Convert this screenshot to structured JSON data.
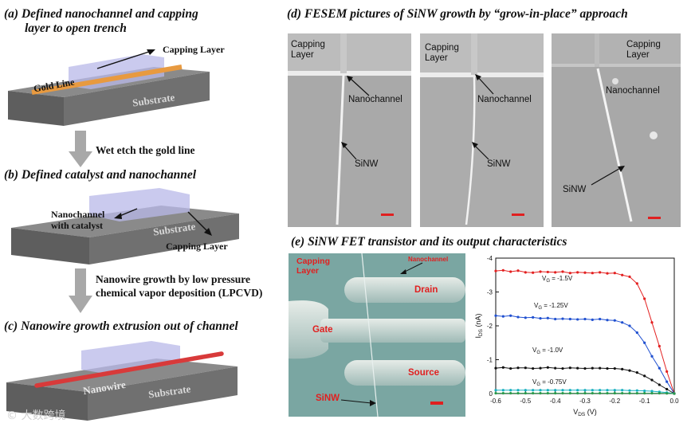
{
  "panel_a": {
    "heading_line1": "(a) Defined nanochannel and capping",
    "heading_line2": "layer to open trench",
    "capping_layer": "Capping Layer",
    "gold_line": "Gold Line",
    "substrate": "Substrate"
  },
  "step_1": "Wet etch the gold line",
  "panel_b": {
    "heading": "(b) Defined catalyst and nanochannel",
    "nanochannel_line1": "Nanochannel",
    "nanochannel_line2": "with catalyst",
    "substrate": "Substrate",
    "capping_layer": "Capping Layer"
  },
  "step_2_line1": "Nanowire growth by low pressure",
  "step_2_line2": "chemical vapor deposition (LPCVD)",
  "panel_c": {
    "heading": "(c) Nanowire growth extrusion out of channel",
    "nanowire": "Nanowire",
    "substrate": "Substrate"
  },
  "panel_d": {
    "heading": "(d) FESEM pictures of SiNW growth by “grow-in-place” approach",
    "img1": {
      "capping1": "Capping",
      "capping2": "Layer",
      "nanochannel": "Nanochannel",
      "sinw": "SiNW"
    },
    "img2": {
      "capping1": "Capping",
      "capping2": "Layer",
      "nanochannel": "Nanochannel",
      "sinw": "SiNW"
    },
    "img3": {
      "capping1": "Capping",
      "capping2": "Layer",
      "nanochannel": "Nanochannel",
      "sinw": "SiNW"
    }
  },
  "panel_e": {
    "heading": "(e) SiNW FET transistor and its output characteristics",
    "sem": {
      "capping1": "Capping",
      "capping2": "Layer",
      "nanochannel": "Nanochannel",
      "drain": "Drain",
      "gate": "Gate",
      "source": "Source",
      "sinw": "SiNW"
    }
  },
  "chart_data": {
    "type": "line",
    "xlabel_main": "V",
    "xlabel_sub": "DS",
    "xlabel_unit": " (V)",
    "ylabel_main": "I",
    "ylabel_sub": "DS",
    "ylabel_unit": " (nA)",
    "xlim": [
      -0.6,
      0.0
    ],
    "ylim": [
      0,
      -4
    ],
    "x_ticks": [
      "-0.6",
      "-0.5",
      "-0.4",
      "-0.3",
      "-0.2",
      "-0.1",
      "0.0"
    ],
    "y_ticks": [
      "0",
      "-1",
      "-2",
      "-3",
      "-4"
    ],
    "x": [
      -0.6,
      -0.575,
      -0.55,
      -0.525,
      -0.5,
      -0.475,
      -0.45,
      -0.425,
      -0.4,
      -0.375,
      -0.35,
      -0.325,
      -0.3,
      -0.275,
      -0.25,
      -0.225,
      -0.2,
      -0.175,
      -0.15,
      -0.125,
      -0.1,
      -0.075,
      -0.05,
      -0.025,
      0.0
    ],
    "series": [
      {
        "name": "V_G = -1.5V",
        "label_main": "V",
        "label_sub": "G",
        "label_val": " = -1.5V",
        "color": "#e32020",
        "values": [
          -3.62,
          -3.64,
          -3.6,
          -3.63,
          -3.58,
          -3.57,
          -3.6,
          -3.59,
          -3.58,
          -3.6,
          -3.56,
          -3.58,
          -3.57,
          -3.56,
          -3.58,
          -3.55,
          -3.56,
          -3.5,
          -3.45,
          -3.25,
          -2.8,
          -2.1,
          -1.4,
          -0.65,
          0
        ]
      },
      {
        "name": "V_G = -1.25V",
        "label_main": "V",
        "label_sub": "G",
        "label_val": " = -1.25V",
        "color": "#2050d0",
        "values": [
          -2.3,
          -2.28,
          -2.3,
          -2.26,
          -2.24,
          -2.25,
          -2.22,
          -2.23,
          -2.2,
          -2.21,
          -2.2,
          -2.19,
          -2.2,
          -2.18,
          -2.2,
          -2.17,
          -2.16,
          -2.1,
          -2.0,
          -1.8,
          -1.5,
          -1.1,
          -0.75,
          -0.35,
          0
        ]
      },
      {
        "name": "V_G = -1.0V",
        "label_main": "V",
        "label_sub": "G",
        "label_val": " = -1.0V",
        "color": "#111111",
        "values": [
          -0.75,
          -0.77,
          -0.74,
          -0.76,
          -0.76,
          -0.74,
          -0.75,
          -0.77,
          -0.75,
          -0.74,
          -0.76,
          -0.75,
          -0.74,
          -0.75,
          -0.75,
          -0.74,
          -0.74,
          -0.72,
          -0.68,
          -0.62,
          -0.52,
          -0.4,
          -0.26,
          -0.13,
          0
        ]
      },
      {
        "name": "V_G = -0.75V",
        "label_main": "V",
        "label_sub": "G",
        "label_val": " = -0.75V",
        "color": "#18b0c0",
        "values": [
          -0.1,
          -0.1,
          -0.1,
          -0.1,
          -0.1,
          -0.1,
          -0.1,
          -0.1,
          -0.1,
          -0.1,
          -0.1,
          -0.1,
          -0.1,
          -0.1,
          -0.1,
          -0.1,
          -0.1,
          -0.1,
          -0.09,
          -0.09,
          -0.08,
          -0.07,
          -0.05,
          -0.03,
          0
        ]
      },
      {
        "name": "",
        "label_main": "",
        "label_sub": "",
        "label_val": "",
        "color": "#2a9a4a",
        "values": [
          -0.01,
          -0.01,
          -0.01,
          -0.01,
          -0.01,
          -0.01,
          -0.01,
          -0.01,
          -0.01,
          -0.01,
          -0.01,
          -0.01,
          -0.01,
          -0.01,
          -0.01,
          -0.01,
          -0.01,
          -0.01,
          -0.01,
          -0.01,
          -0.01,
          -0.01,
          -0.01,
          -0.005,
          0
        ]
      }
    ]
  },
  "watermark": "© 大数跨境"
}
